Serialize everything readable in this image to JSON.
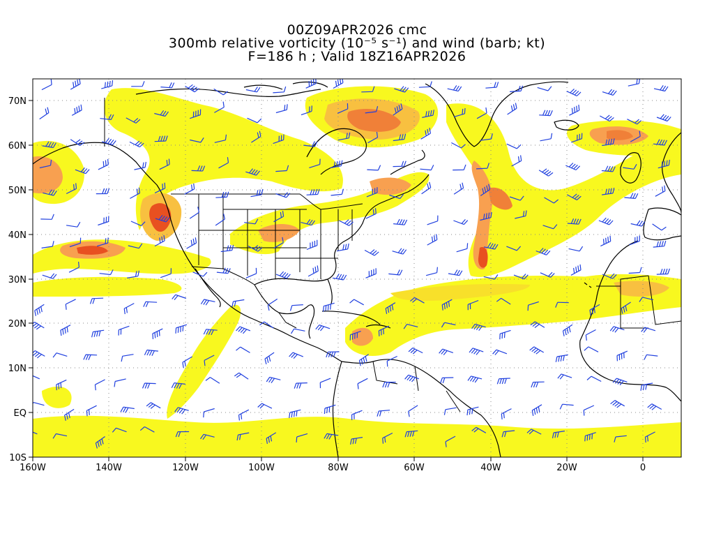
{
  "title": {
    "line1": "00Z09APR2026 cmc",
    "line2": "300mb relative vorticity (10⁻⁵ s⁻¹) and wind (barb; kt)",
    "line3": "F=186 h ; Valid 18Z16APR2026"
  },
  "map": {
    "projection": "cylindrical equidistant",
    "lon_range": [
      -160,
      10
    ],
    "lat_range": [
      -10,
      75
    ],
    "grid": "dotted, every 20° longitude and 10° latitude",
    "lon_tick_labels": [
      "160W",
      "140W",
      "120W",
      "100W",
      "80W",
      "60W",
      "40W",
      "20W",
      "0"
    ],
    "lat_tick_labels": [
      "10S",
      "EQ",
      "10N",
      "20N",
      "30N",
      "40N",
      "50N",
      "60N",
      "70N"
    ],
    "vorticity_colors": [
      "#f8f81f",
      "#f8e02a",
      "#f8c040",
      "#f8a050",
      "#f08038",
      "#e85020"
    ],
    "barb_color": "#1f3fdf",
    "coastline_color": "#000000"
  }
}
